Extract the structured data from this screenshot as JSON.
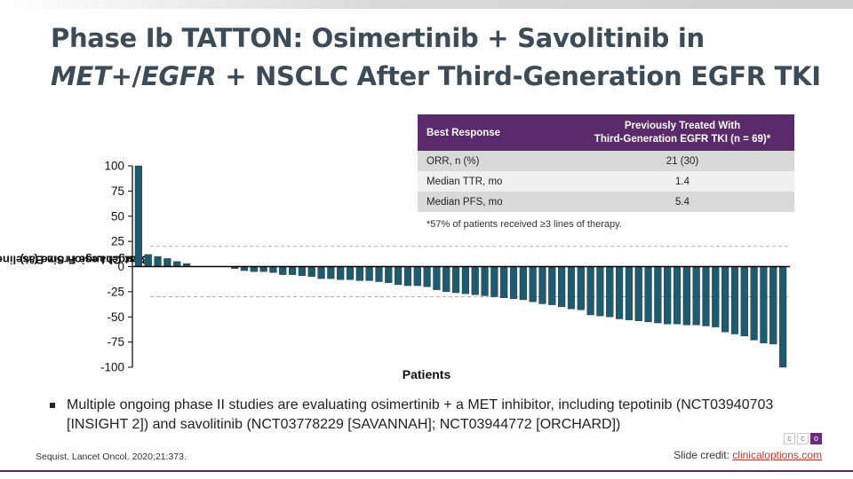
{
  "slide": {
    "title_part1": "Phase Ib TATTON: Osimertinib + Savolitinib in",
    "title_italic1": "MET",
    "title_plus_slash": "+/",
    "title_italic2": "EGFR",
    "title_part2": "+ NSCLC After Third-Generation EGFR TKI"
  },
  "table": {
    "header_col1": "Best Response",
    "header_col2_line1": "Previously Treated With",
    "header_col2_line2": "Third-Generation EGFR TKI (n = 69)*",
    "rows": [
      {
        "label": "ORR, n (%)",
        "value": "21 (30)"
      },
      {
        "label": "Median TTR, mo",
        "value": "1.4"
      },
      {
        "label": "Median PFS, mo",
        "value": "5.4"
      }
    ],
    "footnote": "*57% of patients received ≥3 lines of therapy."
  },
  "chart_data": {
    "type": "bar",
    "title": "",
    "xlabel": "Patients",
    "ylabel_line1": "Best Change From Baseline in",
    "ylabel_line2": "Target Lesion Size (%)",
    "ylim": [
      -100,
      100
    ],
    "yticks": [
      "100",
      "75",
      "50",
      "25",
      "0",
      "-25",
      "-50",
      "-75",
      "-100"
    ],
    "reference_lines": [
      20,
      -30
    ],
    "bar_color": "#1f5a6e",
    "values": [
      100,
      12,
      10,
      8,
      5,
      3,
      0,
      0,
      0,
      0,
      -2,
      -4,
      -5,
      -5,
      -6,
      -8,
      -8,
      -9,
      -10,
      -12,
      -12,
      -13,
      -13,
      -14,
      -14,
      -15,
      -16,
      -18,
      -19,
      -19,
      -20,
      -23,
      -25,
      -26,
      -27,
      -28,
      -29,
      -30,
      -31,
      -32,
      -33,
      -35,
      -37,
      -38,
      -40,
      -42,
      -43,
      -48,
      -49,
      -50,
      -52,
      -53,
      -54,
      -55,
      -56,
      -57,
      -57,
      -58,
      -58,
      -59,
      -60,
      -65,
      -67,
      -69,
      -73,
      -76,
      -77,
      -100
    ]
  },
  "bullet": {
    "text": "Multiple ongoing phase II studies are evaluating osimertinib + a MET inhibitor, including tepotinib (NCT03940703 [INSIGHT 2]) and savolitinib (NCT03778229 [SAVANNAH]; NCT03944772 [ORCHARD])"
  },
  "footer": {
    "citation": "Sequist. Lancet Oncol. 2020;21:373.",
    "credit_label": "Slide credit: ",
    "credit_link": "clinicaloptions.com",
    "logo_letters": [
      "c",
      "c",
      "o"
    ]
  }
}
